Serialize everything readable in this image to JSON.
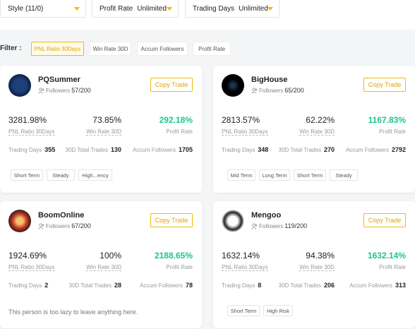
{
  "filters": {
    "dropdowns": [
      {
        "label": "Style (11/0)"
      },
      {
        "label": "Profit Rate",
        "value": "Unlimited"
      },
      {
        "label": "Trading Days",
        "value": "Unlimited"
      }
    ],
    "filter_label": "Filter :",
    "chips": [
      "PNL Ratio 30Days",
      "Win Rate 30D",
      "Accum Followers",
      "Profit Rate"
    ]
  },
  "traders": [
    {
      "name": "PQSummer",
      "followers_label": "Followers",
      "followers": "57/200",
      "button": "Copy Trade",
      "stats": [
        {
          "value": "3281.98%",
          "label": "PNL Ratio 30Days"
        },
        {
          "value": "73.85%",
          "label": "Win Rate 30D"
        },
        {
          "value": "292.18%",
          "label": "Profit Rate"
        }
      ],
      "counts": [
        {
          "label": "Trading Days",
          "value": 355
        },
        {
          "label": "30D Total Trades",
          "value": 130
        },
        {
          "label": "Accum Followers",
          "value": 1705
        }
      ],
      "tags": [
        "Short Term",
        "Steady",
        "High...ency"
      ]
    },
    {
      "name": "BigHouse",
      "followers_label": "Followers",
      "followers": "65/200",
      "button": "Copy Trade",
      "stats": [
        {
          "value": "2813.57%",
          "label": "PNL Ratio 30Days"
        },
        {
          "value": "62.22%",
          "label": "Win Rate 30D"
        },
        {
          "value": "1167.83%",
          "label": "Profit Rate"
        }
      ],
      "counts": [
        {
          "label": "Trading Days",
          "value": 348
        },
        {
          "label": "30D Total Trades",
          "value": 270
        },
        {
          "label": "Accum Followers",
          "value": 2792
        }
      ],
      "tags": [
        "Mid Term",
        "Long Term",
        "Short Term",
        "Steady"
      ]
    },
    {
      "name": "BoomOnline",
      "followers_label": "Followers",
      "followers": "67/200",
      "button": "Copy Trade",
      "stats": [
        {
          "value": "1924.69%",
          "label": "PNL Ratio 30Days"
        },
        {
          "value": "100%",
          "label": "Win Rate 30D"
        },
        {
          "value": "2188.65%",
          "label": "Profit Rate"
        }
      ],
      "counts": [
        {
          "label": "Trading Days",
          "value": 2
        },
        {
          "label": "30D Total Trades",
          "value": 28
        },
        {
          "label": "Accum Followers",
          "value": 78
        }
      ],
      "bio": "This person is too lazy to leave anything here."
    },
    {
      "name": "Mengoo",
      "followers_label": "Followers",
      "followers": "119/200",
      "button": "Copy Trade",
      "stats": [
        {
          "value": "1632.14%",
          "label": "PNL Ratio 30Days"
        },
        {
          "value": "94.38%",
          "label": "Win Rate 30D"
        },
        {
          "value": "1632.14%",
          "label": "Profit Rate"
        }
      ],
      "counts": [
        {
          "label": "Trading Days",
          "value": 8
        },
        {
          "label": "30D Total Trades",
          "value": 206
        },
        {
          "label": "Accum Followers",
          "value": 313
        }
      ],
      "tags": [
        "Short Term",
        "High Risk"
      ]
    }
  ]
}
